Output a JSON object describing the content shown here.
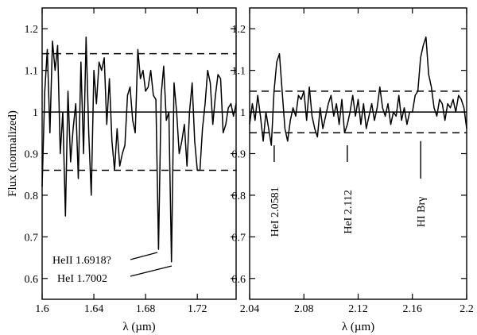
{
  "chart_data": [
    {
      "type": "line",
      "xlabel": "λ (µm)",
      "ylabel": "Flux (normalized)",
      "xlim": [
        1.6,
        1.75
      ],
      "ylim": [
        0.55,
        1.25
      ],
      "xticks": [
        1.6,
        1.64,
        1.68,
        1.72
      ],
      "xtick_labels": [
        "1.6",
        "1.64",
        "1.68",
        "1.72"
      ],
      "yticks": [
        0.6,
        0.7,
        0.8,
        0.9,
        1.0,
        1.1,
        1.2
      ],
      "ytick_labels": [
        "0.6",
        "0.7",
        "0.8",
        "0.9",
        "1",
        "1.1",
        "1.2"
      ],
      "reference_lines": [
        {
          "y": 1.0,
          "style": "solid"
        },
        {
          "y": 1.14,
          "style": "dashed"
        },
        {
          "y": 0.86,
          "style": "dashed"
        }
      ],
      "series": [
        {
          "x": [
            1.6,
            1.602,
            1.604,
            1.606,
            1.608,
            1.61,
            1.612,
            1.614,
            1.616,
            1.618,
            1.62,
            1.622,
            1.624,
            1.626,
            1.628,
            1.63,
            1.632,
            1.634,
            1.636,
            1.638,
            1.64,
            1.642,
            1.644,
            1.646,
            1.648,
            1.65,
            1.652,
            1.654,
            1.656,
            1.658,
            1.66,
            1.662,
            1.664,
            1.666,
            1.668,
            1.67,
            1.672,
            1.674,
            1.676,
            1.678,
            1.68,
            1.682,
            1.684,
            1.686,
            1.688,
            1.69,
            1.692,
            1.694,
            1.696,
            1.698,
            1.7,
            1.702,
            1.704,
            1.706,
            1.708,
            1.71,
            1.712,
            1.714,
            1.716,
            1.718,
            1.72,
            1.722,
            1.724,
            1.726,
            1.728,
            1.73,
            1.732,
            1.734,
            1.736,
            1.738,
            1.74,
            1.742,
            1.744,
            1.746,
            1.748,
            1.75
          ],
          "y": [
            0.82,
            1.05,
            1.15,
            0.95,
            1.17,
            1.1,
            1.16,
            0.9,
            1.0,
            0.75,
            1.05,
            0.88,
            0.96,
            1.02,
            0.84,
            1.12,
            0.9,
            1.18,
            0.95,
            0.8,
            1.1,
            1.02,
            1.12,
            1.1,
            1.13,
            0.97,
            1.08,
            0.93,
            0.86,
            0.96,
            0.87,
            0.9,
            0.92,
            1.04,
            1.06,
            0.98,
            0.95,
            1.15,
            1.08,
            1.1,
            1.05,
            1.06,
            1.1,
            1.04,
            1.03,
            0.67,
            1.04,
            1.11,
            0.98,
            1.0,
            0.64,
            1.07,
            1.0,
            0.9,
            0.93,
            0.97,
            0.87,
            1.0,
            1.07,
            0.93,
            0.86,
            0.86,
            0.96,
            1.02,
            1.1,
            1.07,
            0.97,
            1.04,
            1.09,
            1.08,
            0.95,
            0.97,
            1.01,
            1.02,
            0.99,
            1.02
          ]
        }
      ],
      "annotations": [
        {
          "text": "HeII 1.6918?",
          "x": 1.6918
        },
        {
          "text": "HeI 1.7002",
          "x": 1.7002
        }
      ]
    },
    {
      "type": "line",
      "xlabel": "λ (µm)",
      "ylabel": "",
      "xlim": [
        2.04,
        2.2
      ],
      "ylim": [
        0.55,
        1.25
      ],
      "xticks": [
        2.04,
        2.08,
        2.12,
        2.16,
        2.2
      ],
      "xtick_labels": [
        "2.04",
        "2.08",
        "2.12",
        "2.16",
        "2.2"
      ],
      "yticks": [
        0.6,
        0.7,
        0.8,
        0.9,
        1.0,
        1.1,
        1.2
      ],
      "ytick_labels": [
        "0.6",
        "0.7",
        "0.8",
        "0.9",
        "1",
        "1.1",
        "1.2"
      ],
      "reference_lines": [
        {
          "y": 1.0,
          "style": "solid"
        },
        {
          "y": 1.05,
          "style": "dashed"
        },
        {
          "y": 0.95,
          "style": "dashed"
        }
      ],
      "series": [
        {
          "x": [
            2.04,
            2.042,
            2.044,
            2.046,
            2.048,
            2.05,
            2.052,
            2.054,
            2.056,
            2.058,
            2.06,
            2.062,
            2.064,
            2.066,
            2.068,
            2.07,
            2.072,
            2.074,
            2.076,
            2.078,
            2.08,
            2.082,
            2.084,
            2.086,
            2.088,
            2.09,
            2.092,
            2.094,
            2.096,
            2.098,
            2.1,
            2.102,
            2.104,
            2.106,
            2.108,
            2.11,
            2.112,
            2.114,
            2.116,
            2.118,
            2.12,
            2.122,
            2.124,
            2.126,
            2.128,
            2.13,
            2.132,
            2.134,
            2.136,
            2.138,
            2.14,
            2.142,
            2.144,
            2.146,
            2.148,
            2.15,
            2.152,
            2.154,
            2.156,
            2.158,
            2.16,
            2.162,
            2.164,
            2.166,
            2.168,
            2.17,
            2.172,
            2.174,
            2.176,
            2.178,
            2.18,
            2.182,
            2.184,
            2.186,
            2.188,
            2.19,
            2.192,
            2.194,
            2.196,
            2.198,
            2.2
          ],
          "y": [
            0.97,
            1.02,
            0.98,
            1.04,
            0.99,
            0.93,
            1.0,
            0.96,
            0.92,
            1.05,
            1.12,
            1.14,
            1.05,
            0.96,
            0.93,
            0.98,
            1.01,
            0.99,
            1.04,
            1.03,
            1.05,
            0.98,
            1.06,
            0.99,
            0.96,
            0.94,
            1.01,
            0.96,
            0.99,
            1.02,
            1.04,
            0.99,
            1.02,
            0.97,
            1.03,
            0.95,
            0.97,
            1.0,
            1.04,
            0.99,
            1.03,
            0.97,
            1.02,
            0.96,
            0.99,
            1.02,
            0.98,
            1.01,
            1.06,
            1.01,
            0.99,
            1.02,
            0.97,
            1.0,
            0.99,
            1.04,
            0.98,
            1.01,
            0.97,
            1.0,
            1.0,
            1.04,
            1.05,
            1.13,
            1.16,
            1.18,
            1.09,
            1.06,
            1.01,
            0.99,
            1.03,
            1.02,
            0.98,
            1.02,
            1.01,
            1.03,
            1.0,
            1.04,
            1.03,
            1.01,
            0.96
          ]
        }
      ],
      "annotations": [
        {
          "text": "HeI 2.0581",
          "x": 2.0581
        },
        {
          "text": "HI Brγ",
          "x": 2.1661
        },
        {
          "text": "HeI 2.112",
          "x": 2.112
        }
      ]
    }
  ],
  "colors": {
    "line": "#000000",
    "background": "#ffffff"
  }
}
